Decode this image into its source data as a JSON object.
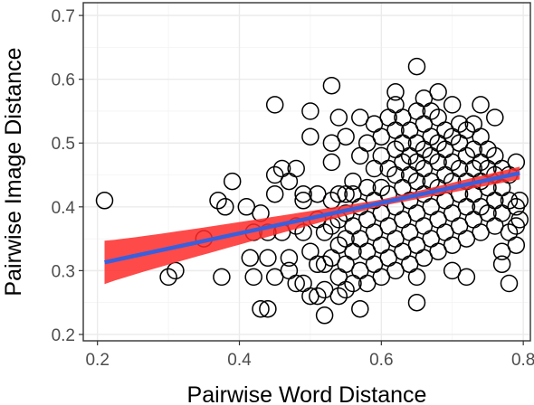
{
  "chart_data": {
    "type": "scatter",
    "xlabel": "Pairwise Word Distance",
    "ylabel": "Pairwise Image Distance",
    "xlim": [
      0.18,
      0.81
    ],
    "ylim": [
      0.19,
      0.72
    ],
    "xticks": [
      0.2,
      0.4,
      0.6,
      0.8
    ],
    "xtick_labels": [
      "0.2",
      "0.4",
      "0.6",
      "0.8"
    ],
    "yticks": [
      0.2,
      0.3,
      0.4,
      0.5,
      0.6,
      0.7
    ],
    "ytick_labels": [
      "0.2",
      "0.3",
      "0.4",
      "0.5",
      "0.6",
      "0.7"
    ],
    "grid": true,
    "point_style": "open circle",
    "point_color": "#000000",
    "fit": {
      "method": "linear",
      "color": "#3a5fdc",
      "band_color": "#ff2a2a",
      "x_range": [
        0.21,
        0.795
      ],
      "y_start": 0.313,
      "y_end": 0.453,
      "band_halfwidth_start": 0.034,
      "band_halfwidth_mid": 0.005,
      "band_halfwidth_end": 0.01
    },
    "points": [
      [
        0.21,
        0.41
      ],
      [
        0.3,
        0.29
      ],
      [
        0.31,
        0.3
      ],
      [
        0.35,
        0.35
      ],
      [
        0.37,
        0.41
      ],
      [
        0.375,
        0.29
      ],
      [
        0.38,
        0.4
      ],
      [
        0.39,
        0.44
      ],
      [
        0.41,
        0.4
      ],
      [
        0.415,
        0.32
      ],
      [
        0.42,
        0.29
      ],
      [
        0.42,
        0.36
      ],
      [
        0.43,
        0.39
      ],
      [
        0.43,
        0.24
      ],
      [
        0.44,
        0.24
      ],
      [
        0.44,
        0.32
      ],
      [
        0.44,
        0.36
      ],
      [
        0.45,
        0.29
      ],
      [
        0.45,
        0.42
      ],
      [
        0.45,
        0.45
      ],
      [
        0.45,
        0.56
      ],
      [
        0.46,
        0.36
      ],
      [
        0.46,
        0.46
      ],
      [
        0.47,
        0.32
      ],
      [
        0.47,
        0.44
      ],
      [
        0.47,
        0.3
      ],
      [
        0.48,
        0.37
      ],
      [
        0.48,
        0.28
      ],
      [
        0.48,
        0.46
      ],
      [
        0.49,
        0.42
      ],
      [
        0.49,
        0.36
      ],
      [
        0.49,
        0.28
      ],
      [
        0.49,
        0.41
      ],
      [
        0.5,
        0.26
      ],
      [
        0.5,
        0.33
      ],
      [
        0.5,
        0.51
      ],
      [
        0.5,
        0.55
      ],
      [
        0.51,
        0.42
      ],
      [
        0.51,
        0.38
      ],
      [
        0.51,
        0.31
      ],
      [
        0.51,
        0.26
      ],
      [
        0.52,
        0.36
      ],
      [
        0.52,
        0.31
      ],
      [
        0.52,
        0.27
      ],
      [
        0.52,
        0.23
      ],
      [
        0.53,
        0.41
      ],
      [
        0.53,
        0.37
      ],
      [
        0.53,
        0.32
      ],
      [
        0.53,
        0.47
      ],
      [
        0.53,
        0.5
      ],
      [
        0.53,
        0.59
      ],
      [
        0.54,
        0.42
      ],
      [
        0.54,
        0.38
      ],
      [
        0.54,
        0.34
      ],
      [
        0.54,
        0.29
      ],
      [
        0.54,
        0.26
      ],
      [
        0.54,
        0.54
      ],
      [
        0.55,
        0.42
      ],
      [
        0.55,
        0.39
      ],
      [
        0.55,
        0.35
      ],
      [
        0.55,
        0.31
      ],
      [
        0.55,
        0.27
      ],
      [
        0.55,
        0.51
      ],
      [
        0.56,
        0.42
      ],
      [
        0.56,
        0.37
      ],
      [
        0.56,
        0.33
      ],
      [
        0.56,
        0.28
      ],
      [
        0.56,
        0.44
      ],
      [
        0.57,
        0.4
      ],
      [
        0.57,
        0.35
      ],
      [
        0.57,
        0.3
      ],
      [
        0.57,
        0.24
      ],
      [
        0.57,
        0.48
      ],
      [
        0.57,
        0.54
      ],
      [
        0.58,
        0.43
      ],
      [
        0.58,
        0.38
      ],
      [
        0.58,
        0.33
      ],
      [
        0.58,
        0.28
      ],
      [
        0.58,
        0.5
      ],
      [
        0.59,
        0.41
      ],
      [
        0.59,
        0.36
      ],
      [
        0.59,
        0.31
      ],
      [
        0.59,
        0.46
      ],
      [
        0.59,
        0.53
      ],
      [
        0.6,
        0.43
      ],
      [
        0.6,
        0.39
      ],
      [
        0.6,
        0.34
      ],
      [
        0.6,
        0.29
      ],
      [
        0.6,
        0.48
      ],
      [
        0.6,
        0.51
      ],
      [
        0.61,
        0.42
      ],
      [
        0.61,
        0.37
      ],
      [
        0.61,
        0.32
      ],
      [
        0.61,
        0.46
      ],
      [
        0.61,
        0.54
      ],
      [
        0.62,
        0.45
      ],
      [
        0.62,
        0.4
      ],
      [
        0.62,
        0.35
      ],
      [
        0.62,
        0.3
      ],
      [
        0.62,
        0.49
      ],
      [
        0.62,
        0.52
      ],
      [
        0.62,
        0.56
      ],
      [
        0.62,
        0.58
      ],
      [
        0.63,
        0.43
      ],
      [
        0.63,
        0.38
      ],
      [
        0.63,
        0.33
      ],
      [
        0.63,
        0.47
      ],
      [
        0.63,
        0.5
      ],
      [
        0.63,
        0.54
      ],
      [
        0.64,
        0.41
      ],
      [
        0.64,
        0.36
      ],
      [
        0.64,
        0.31
      ],
      [
        0.64,
        0.45
      ],
      [
        0.64,
        0.48
      ],
      [
        0.64,
        0.52
      ],
      [
        0.65,
        0.44
      ],
      [
        0.65,
        0.39
      ],
      [
        0.65,
        0.34
      ],
      [
        0.65,
        0.29
      ],
      [
        0.65,
        0.25
      ],
      [
        0.65,
        0.47
      ],
      [
        0.65,
        0.5
      ],
      [
        0.65,
        0.55
      ],
      [
        0.65,
        0.62
      ],
      [
        0.66,
        0.42
      ],
      [
        0.66,
        0.37
      ],
      [
        0.66,
        0.32
      ],
      [
        0.66,
        0.46
      ],
      [
        0.66,
        0.49
      ],
      [
        0.66,
        0.53
      ],
      [
        0.66,
        0.57
      ],
      [
        0.67,
        0.44
      ],
      [
        0.67,
        0.4
      ],
      [
        0.67,
        0.35
      ],
      [
        0.67,
        0.48
      ],
      [
        0.67,
        0.51
      ],
      [
        0.67,
        0.55
      ],
      [
        0.68,
        0.43
      ],
      [
        0.68,
        0.38
      ],
      [
        0.68,
        0.33
      ],
      [
        0.68,
        0.47
      ],
      [
        0.68,
        0.5
      ],
      [
        0.68,
        0.54
      ],
      [
        0.68,
        0.58
      ],
      [
        0.69,
        0.41
      ],
      [
        0.69,
        0.36
      ],
      [
        0.69,
        0.45
      ],
      [
        0.69,
        0.49
      ],
      [
        0.69,
        0.52
      ],
      [
        0.7,
        0.44
      ],
      [
        0.7,
        0.39
      ],
      [
        0.7,
        0.34
      ],
      [
        0.7,
        0.3
      ],
      [
        0.7,
        0.47
      ],
      [
        0.7,
        0.51
      ],
      [
        0.7,
        0.56
      ],
      [
        0.71,
        0.42
      ],
      [
        0.71,
        0.37
      ],
      [
        0.71,
        0.46
      ],
      [
        0.71,
        0.5
      ],
      [
        0.71,
        0.53
      ],
      [
        0.72,
        0.44
      ],
      [
        0.72,
        0.4
      ],
      [
        0.72,
        0.35
      ],
      [
        0.72,
        0.48
      ],
      [
        0.72,
        0.52
      ],
      [
        0.72,
        0.29
      ],
      [
        0.73,
        0.42
      ],
      [
        0.73,
        0.38
      ],
      [
        0.73,
        0.46
      ],
      [
        0.73,
        0.49
      ],
      [
        0.73,
        0.53
      ],
      [
        0.74,
        0.44
      ],
      [
        0.74,
        0.4
      ],
      [
        0.74,
        0.36
      ],
      [
        0.74,
        0.47
      ],
      [
        0.74,
        0.51
      ],
      [
        0.74,
        0.56
      ],
      [
        0.75,
        0.43
      ],
      [
        0.75,
        0.39
      ],
      [
        0.75,
        0.46
      ],
      [
        0.75,
        0.49
      ],
      [
        0.76,
        0.41
      ],
      [
        0.76,
        0.37
      ],
      [
        0.76,
        0.45
      ],
      [
        0.76,
        0.48
      ],
      [
        0.76,
        0.54
      ],
      [
        0.77,
        0.43
      ],
      [
        0.77,
        0.39
      ],
      [
        0.77,
        0.46
      ],
      [
        0.77,
        0.31
      ],
      [
        0.77,
        0.33
      ],
      [
        0.78,
        0.41
      ],
      [
        0.78,
        0.36
      ],
      [
        0.78,
        0.45
      ],
      [
        0.78,
        0.28
      ],
      [
        0.79,
        0.4
      ],
      [
        0.79,
        0.37
      ],
      [
        0.79,
        0.34
      ],
      [
        0.79,
        0.47
      ],
      [
        0.795,
        0.38
      ],
      [
        0.795,
        0.41
      ]
    ]
  }
}
